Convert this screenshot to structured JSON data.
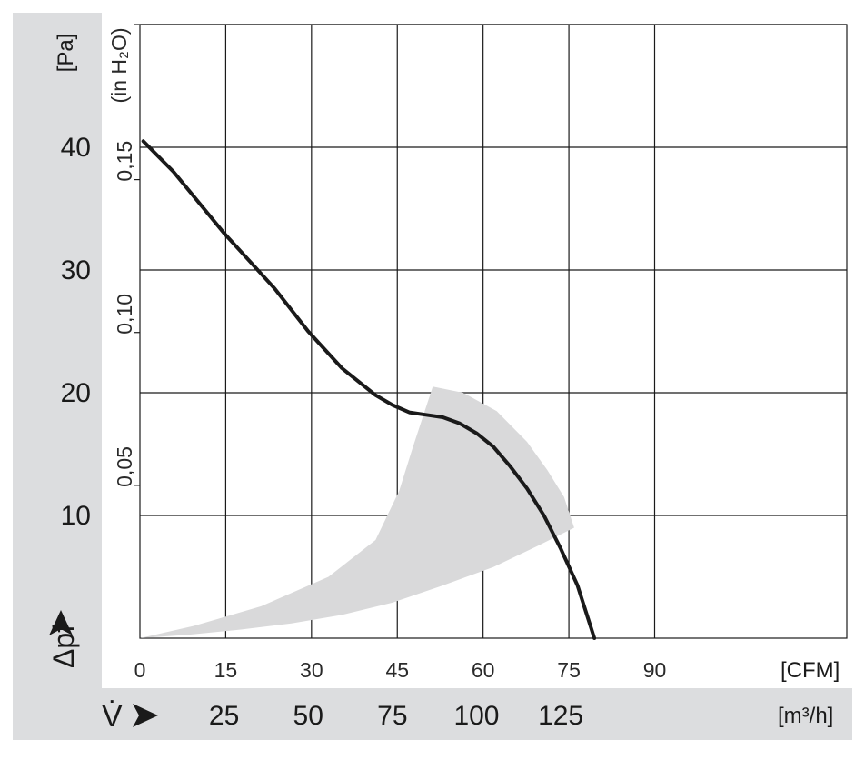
{
  "chart_data": {
    "type": "line",
    "title": "",
    "xlabel": "V̇",
    "ylabel": "Δpf",
    "x_unit_primary": "[m³/h]",
    "x_unit_secondary": "[CFM]",
    "y_unit_primary": "[Pa]",
    "y_unit_secondary": "(in H₂O)",
    "xlim_m3h": [
      0,
      210
    ],
    "ylim_pa": [
      0,
      50
    ],
    "x_ticks_m3h": [
      "25",
      "50",
      "75",
      "100",
      "125"
    ],
    "x_ticks_cfm": [
      "0",
      "15",
      "30",
      "45",
      "60",
      "75",
      "90"
    ],
    "y_ticks_pa": [
      "10",
      "20",
      "30",
      "40"
    ],
    "y_ticks_inh2o": [
      "0,05",
      "0,10",
      "0,15"
    ],
    "grid": true,
    "series": [
      {
        "x_m3h": [
          1,
          10,
          25,
          40,
          50,
          60,
          70,
          75,
          80,
          85,
          90,
          95,
          100,
          105,
          110,
          115,
          120,
          125,
          130,
          135
        ],
        "y_pa": [
          40.5,
          38.0,
          33.0,
          28.5,
          25.0,
          22.0,
          19.8,
          19.0,
          18.4,
          18.2,
          18.0,
          17.5,
          16.7,
          15.6,
          14.0,
          12.2,
          10.0,
          7.3,
          4.3,
          0
        ]
      }
    ],
    "operating_region": {
      "x_m3h": [
        0,
        16,
        36,
        56,
        70,
        77,
        81,
        87,
        96,
        106,
        115,
        121,
        126,
        129,
        118,
        105,
        90,
        75,
        60,
        45,
        30,
        15
      ],
      "y_pa": [
        0,
        1,
        2.6,
        5,
        8,
        12,
        15.5,
        20.5,
        20,
        18.5,
        16,
        13.7,
        11.5,
        9,
        7.5,
        5.8,
        4.3,
        2.9,
        1.9,
        1.2,
        0.7,
        0.3
      ]
    }
  }
}
